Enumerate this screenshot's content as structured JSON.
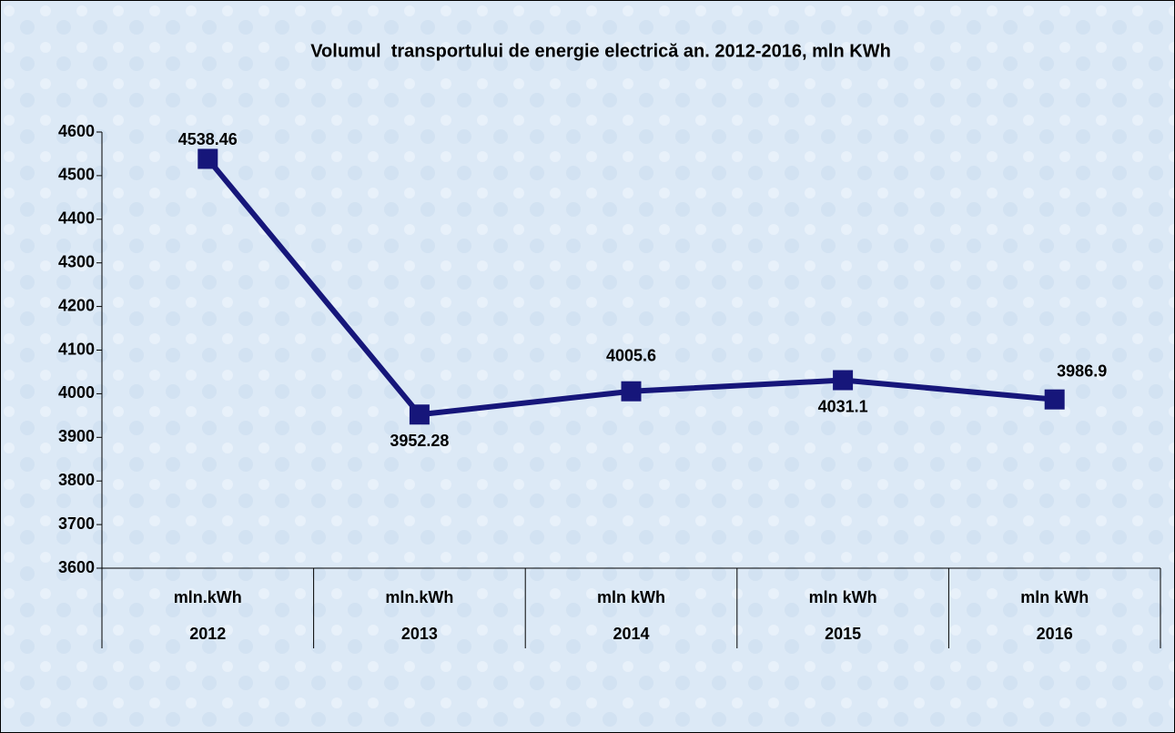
{
  "chart_data": {
    "type": "line",
    "title": "Volumul  transportului de energie electrică an. 2012-2016, mln KWh",
    "categories": [
      "2012",
      "2013",
      "2014",
      "2015",
      "2016"
    ],
    "category_units": [
      "mln.kWh",
      "mln.kWh",
      "mln kWh",
      "mln kWh",
      "mln kWh"
    ],
    "series": [
      {
        "name": "mln kWh",
        "color": "#16167a",
        "values": [
          4538.46,
          3952.28,
          4005.6,
          4031.1,
          3986.9
        ]
      }
    ],
    "ylim": [
      3600,
      4600
    ],
    "yticks": [
      3600,
      3700,
      3800,
      3900,
      4000,
      4100,
      4200,
      4300,
      4400,
      4500,
      4600
    ],
    "grid": false
  }
}
